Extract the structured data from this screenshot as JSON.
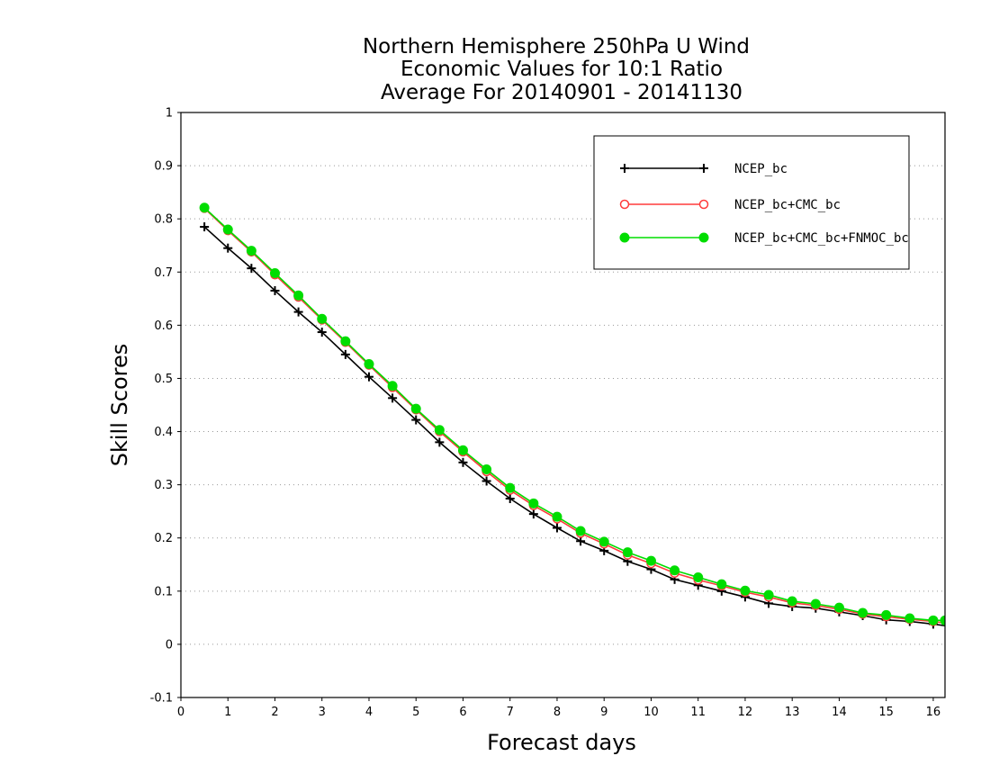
{
  "chart_data": {
    "type": "line",
    "title_lines": [
      "Northern Hemisphere 250hPa U Wind",
      "Economic Values for 10:1 Ratio",
      "Average For 20140901 - 20141130"
    ],
    "xlabel": "Forecast days",
    "ylabel": "Skill Scores",
    "xlim": [
      0,
      16.25
    ],
    "ylim": [
      -0.1,
      1
    ],
    "xticks": [
      "0",
      "1",
      "2",
      "3",
      "4",
      "5",
      "6",
      "7",
      "8",
      "9",
      "10",
      "11",
      "12",
      "13",
      "14",
      "15",
      "16"
    ],
    "yticks": [
      "-0.1",
      "0",
      "0.1",
      "0.2",
      "0.3",
      "0.4",
      "0.5",
      "0.6",
      "0.7",
      "0.8",
      "0.9",
      "1"
    ],
    "grid": "horizontal dotted",
    "legend_position": "top-right",
    "x": [
      0.5,
      1,
      1.5,
      2,
      2.5,
      3,
      3.5,
      4,
      4.5,
      5,
      5.5,
      6,
      6.5,
      7,
      7.5,
      8,
      8.5,
      9,
      9.5,
      10,
      10.5,
      11,
      11.5,
      12,
      12.5,
      13,
      13.5,
      14,
      14.5,
      15,
      15.5,
      16,
      16.25
    ],
    "series": [
      {
        "name": "NCEP_bc",
        "color": "#000000",
        "marker": "plus",
        "values": [
          0.785,
          0.745,
          0.707,
          0.665,
          0.625,
          0.587,
          0.545,
          0.503,
          0.463,
          0.422,
          0.38,
          0.342,
          0.307,
          0.274,
          0.245,
          0.219,
          0.194,
          0.176,
          0.156,
          0.141,
          0.122,
          0.111,
          0.1,
          0.089,
          0.077,
          0.071,
          0.068,
          0.061,
          0.054,
          0.046,
          0.043,
          0.038,
          0.035
        ]
      },
      {
        "name": "NCEP_bc+CMC_bc",
        "color": "#ff3b3b",
        "marker": "circle-open",
        "values": [
          0.82,
          0.778,
          0.738,
          0.695,
          0.653,
          0.61,
          0.568,
          0.525,
          0.483,
          0.441,
          0.4,
          0.362,
          0.325,
          0.29,
          0.261,
          0.236,
          0.209,
          0.189,
          0.168,
          0.152,
          0.134,
          0.121,
          0.11,
          0.098,
          0.089,
          0.078,
          0.073,
          0.066,
          0.057,
          0.052,
          0.047,
          0.043,
          0.04
        ]
      },
      {
        "name": "NCEP_bc+CMC_bc+FNMOC_bc",
        "color": "#00dd00",
        "marker": "circle-filled",
        "values": [
          0.821,
          0.78,
          0.74,
          0.698,
          0.656,
          0.612,
          0.57,
          0.527,
          0.486,
          0.443,
          0.403,
          0.365,
          0.329,
          0.294,
          0.265,
          0.24,
          0.213,
          0.193,
          0.173,
          0.157,
          0.139,
          0.126,
          0.113,
          0.101,
          0.093,
          0.081,
          0.076,
          0.069,
          0.059,
          0.055,
          0.049,
          0.045,
          0.045
        ]
      }
    ]
  }
}
